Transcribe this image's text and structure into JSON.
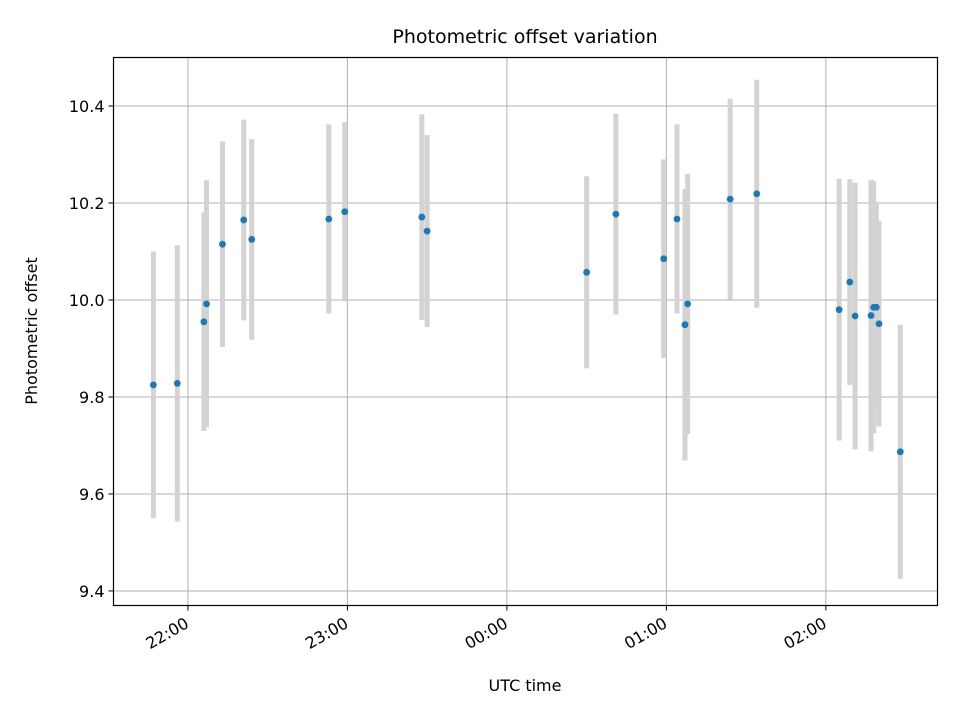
{
  "chart_data": {
    "type": "scatter",
    "title": "Photometric offset variation",
    "xlabel": "UTC time",
    "ylabel": "Photometric offset",
    "x_axis_type": "time",
    "xlim": [
      "21:32",
      "02:42"
    ],
    "ylim": [
      9.37,
      10.5
    ],
    "x_ticks": [
      "22:00",
      "23:00",
      "00:00",
      "01:00",
      "02:00"
    ],
    "y_ticks": [
      9.4,
      9.6,
      9.8,
      10.0,
      10.2,
      10.4
    ],
    "grid": true,
    "marker_color": "#1f77b4",
    "errorbar_color": "#d3d3d3",
    "points": [
      {
        "x": "21:47",
        "y": 9.825,
        "err": 0.275
      },
      {
        "x": "21:56",
        "y": 9.828,
        "err": 0.285
      },
      {
        "x": "22:06",
        "y": 9.955,
        "err": 0.225
      },
      {
        "x": "22:07",
        "y": 9.992,
        "err": 0.255
      },
      {
        "x": "22:13",
        "y": 10.115,
        "err": 0.212
      },
      {
        "x": "22:21",
        "y": 10.165,
        "err": 0.207
      },
      {
        "x": "22:24",
        "y": 10.125,
        "err": 0.207
      },
      {
        "x": "22:53",
        "y": 10.167,
        "err": 0.195
      },
      {
        "x": "22:59",
        "y": 10.182,
        "err": 0.185
      },
      {
        "x": "23:28",
        "y": 10.171,
        "err": 0.212
      },
      {
        "x": "23:30",
        "y": 10.142,
        "err": 0.198
      },
      {
        "x": "00:30",
        "y": 10.057,
        "err": 0.198
      },
      {
        "x": "00:41",
        "y": 10.177,
        "err": 0.207
      },
      {
        "x": "00:59",
        "y": 10.085,
        "err": 0.205
      },
      {
        "x": "01:04",
        "y": 10.167,
        "err": 0.195
      },
      {
        "x": "01:07",
        "y": 9.949,
        "err": 0.28
      },
      {
        "x": "01:08",
        "y": 9.992,
        "err": 0.268
      },
      {
        "x": "01:24",
        "y": 10.208,
        "err": 0.207
      },
      {
        "x": "01:34",
        "y": 10.219,
        "err": 0.235
      },
      {
        "x": "02:05",
        "y": 9.98,
        "err": 0.27
      },
      {
        "x": "02:09",
        "y": 10.037,
        "err": 0.212
      },
      {
        "x": "02:11",
        "y": 9.967,
        "err": 0.275
      },
      {
        "x": "02:17",
        "y": 9.968,
        "err": 0.28
      },
      {
        "x": "02:18",
        "y": 9.985,
        "err": 0.26
      },
      {
        "x": "02:19",
        "y": 9.985,
        "err": 0.215
      },
      {
        "x": "02:20",
        "y": 9.951,
        "err": 0.212
      },
      {
        "x": "02:28",
        "y": 9.687,
        "err": 0.262
      }
    ]
  }
}
